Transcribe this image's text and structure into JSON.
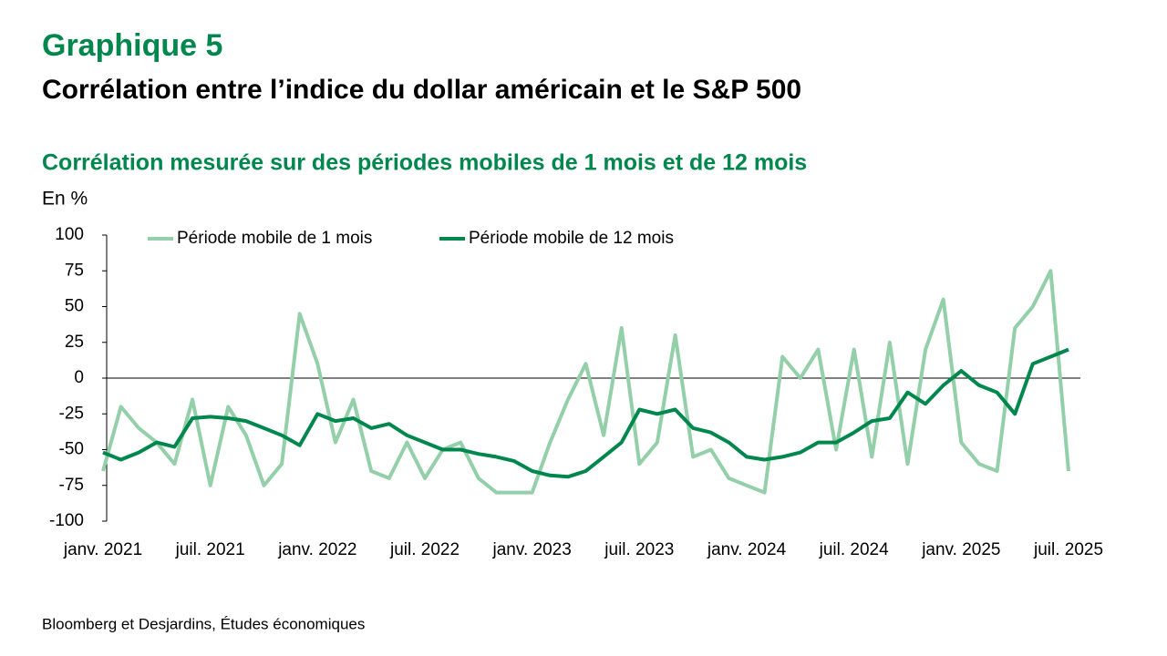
{
  "chart_data": {
    "type": "line",
    "title": "Graphique 5",
    "subtitle": "Corrélation entre l’indice du dollar américain et le S&P 500",
    "chart_subtitle": "Corrélation mesurée sur des périodes mobiles de 1 mois et de 12 mois",
    "y_label": "En %",
    "source": "Bloomberg et Desjardins, Études économiques",
    "x": [
      "2021-01",
      "2021-02",
      "2021-03",
      "2021-04",
      "2021-05",
      "2021-06",
      "2021-07",
      "2021-08",
      "2021-09",
      "2021-10",
      "2021-11",
      "2021-12",
      "2022-01",
      "2022-02",
      "2022-03",
      "2022-04",
      "2022-05",
      "2022-06",
      "2022-07",
      "2022-08",
      "2022-09",
      "2022-10",
      "2022-11",
      "2022-12",
      "2023-01",
      "2023-02",
      "2023-03",
      "2023-04",
      "2023-05",
      "2023-06",
      "2023-07",
      "2023-08",
      "2023-09",
      "2023-10",
      "2023-11",
      "2023-12",
      "2024-01",
      "2024-02",
      "2024-03",
      "2024-04",
      "2024-05",
      "2024-06",
      "2024-07",
      "2024-08",
      "2024-09",
      "2024-10",
      "2024-11",
      "2024-12",
      "2025-01",
      "2025-02",
      "2025-03",
      "2025-04",
      "2025-05",
      "2025-06",
      "2025-07"
    ],
    "series": [
      {
        "name": "Période mobile de 1 mois",
        "color": "#93cfa9",
        "width": 4,
        "values": [
          -65,
          -20,
          -35,
          -45,
          -60,
          -15,
          -75,
          -20,
          -40,
          -75,
          -60,
          45,
          10,
          -45,
          -15,
          -65,
          -70,
          -45,
          -70,
          -50,
          -45,
          -70,
          -80,
          -80,
          -80,
          -45,
          -15,
          10,
          -40,
          35,
          -60,
          -45,
          30,
          -55,
          -50,
          -70,
          -75,
          -80,
          15,
          0,
          20,
          -50,
          20,
          -55,
          25,
          -60,
          20,
          55,
          -45,
          -60,
          -65,
          35,
          50,
          75,
          -65
        ]
      },
      {
        "name": "Période mobile de 12 mois",
        "color": "#00874e",
        "width": 4,
        "values": [
          -52,
          -57,
          -52,
          -45,
          -48,
          -28,
          -27,
          -28,
          -30,
          -35,
          -40,
          -47,
          -25,
          -30,
          -28,
          -35,
          -32,
          -40,
          -45,
          -50,
          -50,
          -53,
          -55,
          -58,
          -65,
          -68,
          -69,
          -65,
          -55,
          -45,
          -22,
          -25,
          -22,
          -35,
          -38,
          -45,
          -55,
          -57,
          -55,
          -52,
          -45,
          -45,
          -38,
          -30,
          -28,
          -10,
          -18,
          -5,
          5,
          -5,
          -10,
          -25,
          10,
          15,
          20
        ]
      }
    ],
    "xlim": [
      "2021-01",
      "2025-07"
    ],
    "xticks": [
      {
        "value": "2021-01",
        "label": "janv. 2021"
      },
      {
        "value": "2021-07",
        "label": "juil. 2021"
      },
      {
        "value": "2022-01",
        "label": "janv. 2022"
      },
      {
        "value": "2022-07",
        "label": "juil. 2022"
      },
      {
        "value": "2023-01",
        "label": "janv. 2023"
      },
      {
        "value": "2023-07",
        "label": "juil. 2023"
      },
      {
        "value": "2024-01",
        "label": "janv. 2024"
      },
      {
        "value": "2024-07",
        "label": "juil. 2024"
      },
      {
        "value": "2025-01",
        "label": "janv. 2025"
      },
      {
        "value": "2025-07",
        "label": "juil. 2025"
      }
    ],
    "ylim": [
      -100,
      100
    ],
    "yticks": [
      -100,
      -75,
      -50,
      -25,
      0,
      25,
      50,
      75,
      100
    ],
    "zero_line": true
  }
}
